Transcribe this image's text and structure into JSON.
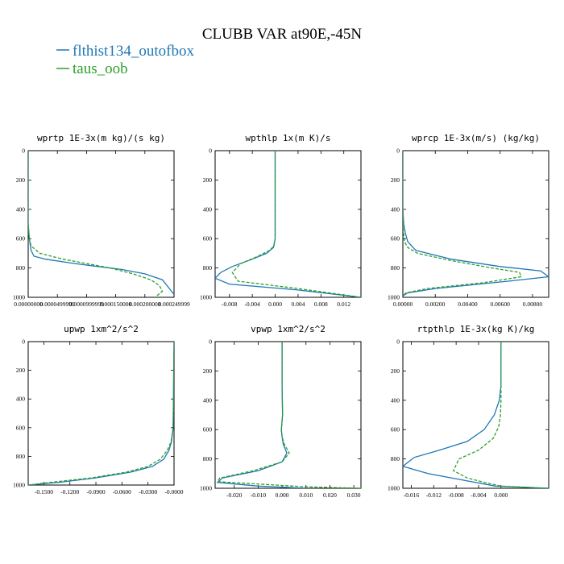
{
  "figure": {
    "title": "CLUBB VAR at90E,-45N",
    "legend": [
      {
        "name": "flthist134_outofbox",
        "color": "#1f77b4",
        "dash": false
      },
      {
        "name": "taus_oob",
        "color": "#2ca02c",
        "dash": true
      }
    ]
  },
  "chart_data": [
    {
      "type": "line",
      "title": "wprtp  1E-3x(m kg)/(s kg)",
      "xlim": [
        0,
        0.00025
      ],
      "ylim": [
        1000,
        0
      ],
      "yticks": [
        0,
        200,
        400,
        600,
        800,
        1000
      ],
      "xticks": [
        {
          "value": 0.0,
          "label": "0.00000000"
        },
        {
          "value": 5e-05,
          "label": "0.0000499999"
        },
        {
          "value": 0.0001,
          "label": "0.0000999999"
        },
        {
          "value": 0.00015,
          "label": "0.000150000"
        },
        {
          "value": 0.0002,
          "label": "0.000200000"
        },
        {
          "value": 0.00025,
          "label": "0.000249999"
        }
      ],
      "series": [
        {
          "name": "flthist134_outofbox",
          "x": [
            0,
            0,
            0,
            2e-06,
            5e-06,
            1e-05,
            3e-05,
            8e-05,
            0.00012,
            0.00016,
            0.0002,
            0.00023,
            0.00025
          ],
          "y": [
            0,
            300,
            500,
            600,
            680,
            720,
            740,
            770,
            790,
            810,
            840,
            880,
            980
          ]
        },
        {
          "name": "taus_oob",
          "x": [
            0,
            0,
            0,
            2e-06,
            5e-06,
            2e-05,
            6e-05,
            0.0001,
            0.00014,
            0.00018,
            0.00021,
            0.000225,
            0.00023,
            0.00022
          ],
          "y": [
            0,
            300,
            500,
            600,
            650,
            700,
            740,
            770,
            800,
            840,
            880,
            920,
            960,
            990
          ]
        }
      ]
    },
    {
      "type": "line",
      "title": "wpthlp  1x(m K)/s",
      "xlim": [
        -0.0105,
        0.015
      ],
      "ylim": [
        1000,
        0
      ],
      "yticks": [
        0,
        200,
        400,
        600,
        800,
        1000
      ],
      "xticks": [
        {
          "value": -0.008,
          "label": "-0.008"
        },
        {
          "value": -0.004,
          "label": "-0.004"
        },
        {
          "value": 0.0,
          "label": "0.000"
        },
        {
          "value": 0.004,
          "label": "0.004"
        },
        {
          "value": 0.008,
          "label": "0.008"
        },
        {
          "value": 0.012,
          "label": "0.012"
        }
      ],
      "series": [
        {
          "name": "flthist134_outofbox",
          "x": [
            0,
            0,
            0,
            -0.0003,
            -0.0015,
            -0.004,
            -0.0075,
            -0.0095,
            -0.0105,
            -0.008,
            0.004,
            0.015
          ],
          "y": [
            0,
            300,
            600,
            660,
            700,
            740,
            790,
            830,
            870,
            910,
            950,
            1000
          ]
        },
        {
          "name": "taus_oob",
          "x": [
            0,
            0,
            0,
            -0.0002,
            -0.001,
            -0.003,
            -0.006,
            -0.0075,
            -0.0065,
            0.004,
            0.015
          ],
          "y": [
            0,
            300,
            600,
            650,
            680,
            720,
            770,
            830,
            890,
            940,
            1000
          ]
        }
      ]
    },
    {
      "type": "line",
      "title": "wprcp  1E-3x(m/s) (kg/kg)",
      "xlim": [
        0,
        0.009
      ],
      "ylim": [
        1000,
        0
      ],
      "yticks": [
        0,
        200,
        400,
        600,
        800,
        1000
      ],
      "xticks": [
        {
          "value": 0.0,
          "label": "0.00000"
        },
        {
          "value": 0.002,
          "label": "0.00200"
        },
        {
          "value": 0.004,
          "label": "0.00400"
        },
        {
          "value": 0.006,
          "label": "0.00600"
        },
        {
          "value": 0.008,
          "label": "0.00800"
        }
      ],
      "series": [
        {
          "name": "flthist134_outofbox",
          "x": [
            0,
            0,
            5e-05,
            0.00015,
            0.0003,
            0.0008,
            0.003,
            0.006,
            0.0085,
            0.009,
            0.0065,
            0.002,
            0.0003,
            0
          ],
          "y": [
            0,
            400,
            500,
            560,
            620,
            680,
            740,
            790,
            820,
            860,
            890,
            940,
            970,
            990
          ]
        },
        {
          "name": "taus_oob",
          "x": [
            0,
            0,
            3e-05,
            0.0001,
            0.0003,
            0.0009,
            0.003,
            0.0055,
            0.0072,
            0.0073,
            0.005,
            0.0015,
            0.0002,
            0
          ],
          "y": [
            0,
            400,
            550,
            620,
            660,
            700,
            750,
            800,
            830,
            860,
            900,
            940,
            970,
            990
          ]
        }
      ]
    },
    {
      "type": "line",
      "title": "upwp  1xm^2/s^2",
      "xlim": [
        -0.168,
        0.0
      ],
      "ylim": [
        1000,
        0
      ],
      "yticks": [
        0,
        200,
        400,
        600,
        800,
        1000
      ],
      "xticks": [
        {
          "value": -0.15,
          "label": "-0.1500"
        },
        {
          "value": -0.12,
          "label": "-0.1200"
        },
        {
          "value": -0.09,
          "label": "-0.0900"
        },
        {
          "value": -0.06,
          "label": "-0.0600"
        },
        {
          "value": -0.03,
          "label": "-0.0300"
        },
        {
          "value": 0.0,
          "label": "-0.0000"
        }
      ],
      "series": [
        {
          "name": "flthist134_outofbox",
          "x": [
            0,
            -0.001,
            -0.003,
            -0.006,
            -0.012,
            -0.025,
            -0.05,
            -0.09,
            -0.13,
            -0.168
          ],
          "y": [
            0,
            600,
            700,
            760,
            820,
            870,
            910,
            950,
            980,
            1000
          ]
        },
        {
          "name": "taus_oob",
          "x": [
            0,
            -0.001,
            -0.0035,
            -0.008,
            -0.016,
            -0.03,
            -0.055,
            -0.095,
            -0.14,
            -0.168
          ],
          "y": [
            0,
            600,
            700,
            760,
            820,
            870,
            910,
            950,
            980,
            1000
          ]
        }
      ]
    },
    {
      "type": "line",
      "title": "vpwp  1xm^2/s^2",
      "xlim": [
        -0.028,
        0.033
      ],
      "ylim": [
        1000,
        0
      ],
      "yticks": [
        0,
        200,
        400,
        600,
        800,
        1000
      ],
      "xticks": [
        {
          "value": -0.02,
          "label": "-0.020"
        },
        {
          "value": -0.01,
          "label": "-0.010"
        },
        {
          "value": 0.0,
          "label": "0.000"
        },
        {
          "value": 0.01,
          "label": "0.010"
        },
        {
          "value": 0.02,
          "label": "0.020"
        },
        {
          "value": 0.03,
          "label": "0.030"
        }
      ],
      "series": [
        {
          "name": "flthist134_outofbox",
          "x": [
            0,
            0,
            0.0002,
            -0.0003,
            0,
            0.0005,
            0.002,
            0,
            -0.01,
            -0.025,
            -0.027,
            -0.01,
            0.01
          ],
          "y": [
            0,
            300,
            500,
            600,
            650,
            700,
            760,
            820,
            880,
            930,
            960,
            985,
            1000
          ]
        },
        {
          "name": "taus_oob",
          "x": [
            0,
            0,
            0.0002,
            -0.0003,
            0,
            0.001,
            0.003,
            0,
            -0.012,
            -0.026,
            -0.027,
            0.01,
            0.033
          ],
          "y": [
            0,
            300,
            500,
            600,
            650,
            700,
            760,
            820,
            880,
            930,
            955,
            990,
            1000
          ]
        }
      ]
    },
    {
      "type": "line",
      "title": "rtpthlp  1E-3x(kg K)/kg",
      "xlim": [
        -0.0175,
        0.0085
      ],
      "ylim": [
        1000,
        0
      ],
      "yticks": [
        0,
        200,
        400,
        600,
        800,
        1000
      ],
      "xticks": [
        {
          "value": -0.016,
          "label": "-0.016"
        },
        {
          "value": -0.012,
          "label": "-0.012"
        },
        {
          "value": -0.008,
          "label": "-0.008"
        },
        {
          "value": -0.004,
          "label": "-0.004"
        },
        {
          "value": 0.0,
          "label": "0.000"
        }
      ],
      "series": [
        {
          "name": "flthist134_outofbox",
          "x": [
            0,
            0,
            -0.0003,
            -0.0012,
            -0.003,
            -0.006,
            -0.011,
            -0.0155,
            -0.0175,
            -0.013,
            -0.006,
            -0.001,
            0.0085
          ],
          "y": [
            0,
            300,
            400,
            500,
            600,
            680,
            740,
            790,
            850,
            900,
            950,
            985,
            1000
          ]
        },
        {
          "name": "taus_oob",
          "x": [
            0,
            0,
            -0.0001,
            -0.0004,
            -0.0014,
            -0.004,
            -0.0075,
            -0.0085,
            -0.006,
            -0.003,
            0,
            0.0085
          ],
          "y": [
            0,
            400,
            500,
            580,
            660,
            740,
            800,
            880,
            930,
            960,
            985,
            1000
          ]
        }
      ]
    }
  ]
}
